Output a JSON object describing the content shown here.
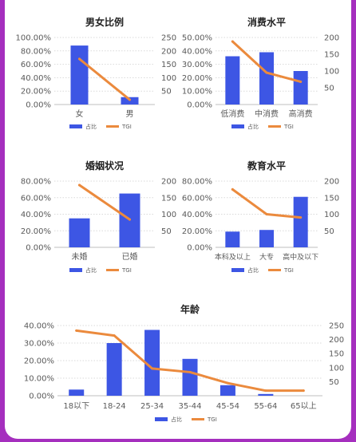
{
  "colors": {
    "bar": "#3d56e4",
    "line": "#eb8a3d",
    "grid": "#d9d9d9",
    "axis": "#595959",
    "title": "#222222",
    "background": "#a52fbe"
  },
  "chart_data": [
    {
      "type": "bar",
      "title": "男女比例",
      "categories": [
        "女",
        "男"
      ],
      "series": [
        {
          "name": "占比",
          "type": "bar",
          "axis": "left",
          "values": [
            88,
            11
          ]
        },
        {
          "name": "TGI",
          "type": "line",
          "axis": "right",
          "values": [
            170,
            18
          ]
        }
      ],
      "y_left": {
        "ticks": [
          "0.00%",
          "20.00%",
          "40.00%",
          "60.00%",
          "80.00%",
          "100.00%"
        ],
        "ylim": [
          0,
          100
        ]
      },
      "y_right": {
        "ticks": [
          "50",
          "100",
          "150",
          "200",
          "250"
        ],
        "ylim": [
          0,
          250
        ]
      },
      "legend": "bottom",
      "grid": true
    },
    {
      "type": "bar",
      "title": "消费水平",
      "categories": [
        "低消费",
        "中消费",
        "高消费"
      ],
      "series": [
        {
          "name": "占比",
          "type": "bar",
          "axis": "left",
          "values": [
            36,
            39,
            25
          ]
        },
        {
          "name": "TGI",
          "type": "line",
          "axis": "right",
          "values": [
            188,
            95,
            68
          ]
        }
      ],
      "y_left": {
        "ticks": [
          "0.00%",
          "10.00%",
          "20.00%",
          "30.00%",
          "40.00%",
          "50.00%"
        ],
        "ylim": [
          0,
          50
        ]
      },
      "y_right": {
        "ticks": [
          "50",
          "100",
          "150",
          "200"
        ],
        "ylim": [
          0,
          200
        ]
      },
      "legend": "bottom",
      "grid": true
    },
    {
      "type": "bar",
      "title": "婚姻状况",
      "categories": [
        "未婚",
        "已婚"
      ],
      "series": [
        {
          "name": "占比",
          "type": "bar",
          "axis": "left",
          "values": [
            35,
            65
          ]
        },
        {
          "name": "TGI",
          "type": "line",
          "axis": "right",
          "values": [
            188,
            84
          ]
        }
      ],
      "y_left": {
        "ticks": [
          "0.00%",
          "20.00%",
          "40.00%",
          "60.00%",
          "80.00%"
        ],
        "ylim": [
          0,
          80
        ]
      },
      "y_right": {
        "ticks": [
          "50",
          "100",
          "150",
          "200"
        ],
        "ylim": [
          0,
          200
        ]
      },
      "legend": "bottom",
      "grid": true
    },
    {
      "type": "bar",
      "title": "教育水平",
      "categories": [
        "本科及以上",
        "大专",
        "高中及以下"
      ],
      "series": [
        {
          "name": "占比",
          "type": "bar",
          "axis": "left",
          "values": [
            19,
            21,
            61
          ]
        },
        {
          "name": "TGI",
          "type": "line",
          "axis": "right",
          "values": [
            175,
            100,
            90
          ]
        }
      ],
      "y_left": {
        "ticks": [
          "0.00%",
          "20.00%",
          "40.00%",
          "60.00%",
          "80.00%"
        ],
        "ylim": [
          0,
          80
        ]
      },
      "y_right": {
        "ticks": [
          "50",
          "100",
          "150",
          "200"
        ],
        "ylim": [
          0,
          200
        ]
      },
      "legend": "bottom",
      "grid": true
    },
    {
      "type": "bar",
      "title": "年龄",
      "categories": [
        "18以下",
        "18-24",
        "25-34",
        "35-44",
        "45-54",
        "55-64",
        "65以上"
      ],
      "series": [
        {
          "name": "占比",
          "type": "bar",
          "axis": "left",
          "values": [
            3.5,
            30,
            37.5,
            21,
            6,
            1,
            0
          ]
        },
        {
          "name": "TGI",
          "type": "line",
          "axis": "right",
          "values": [
            232,
            214,
            97,
            84,
            45,
            18,
            18
          ]
        }
      ],
      "y_left": {
        "ticks": [
          "0.00%",
          "10.00%",
          "20.00%",
          "30.00%",
          "40.00%"
        ],
        "ylim": [
          0,
          40
        ]
      },
      "y_right": {
        "ticks": [
          "50",
          "100",
          "150",
          "200",
          "250"
        ],
        "ylim": [
          0,
          250
        ]
      },
      "legend": "bottom",
      "grid": true
    }
  ]
}
